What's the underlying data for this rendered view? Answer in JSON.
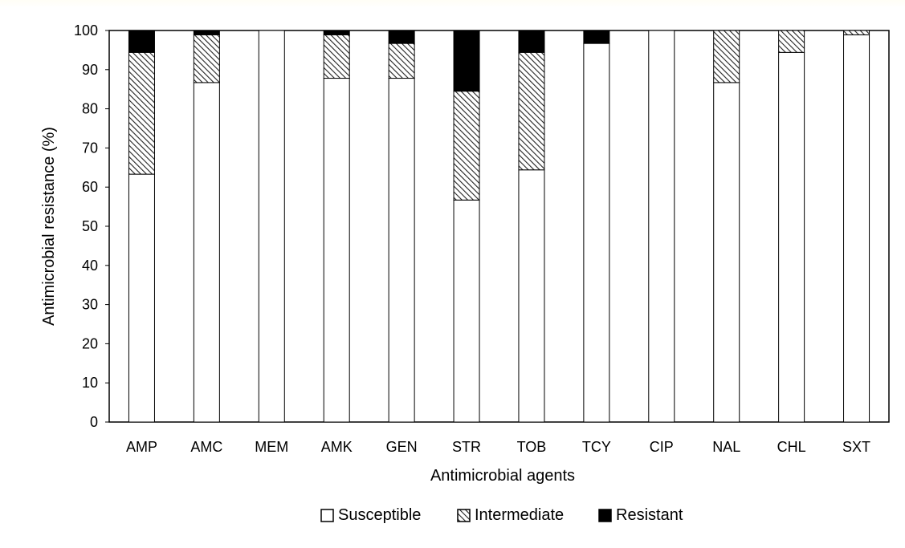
{
  "chart_data": {
    "type": "bar",
    "stacked": true,
    "title": "",
    "xlabel": "Antimicrobial agents",
    "ylabel": "Antimicrobial resistance (%)",
    "ylim": [
      0,
      100
    ],
    "yticks": [
      0,
      10,
      20,
      30,
      40,
      50,
      60,
      70,
      80,
      90,
      100
    ],
    "grid": false,
    "legend_position": "bottom",
    "categories": [
      "AMP",
      "AMC",
      "MEM",
      "AMK",
      "GEN",
      "STR",
      "TOB",
      "TCY",
      "CIP",
      "NAL",
      "CHL",
      "SXT"
    ],
    "series": [
      {
        "name": "Susceptible",
        "fill": "#ffffff",
        "pattern": "none",
        "values": [
          63.3,
          86.7,
          100,
          87.8,
          87.8,
          56.7,
          64.4,
          96.7,
          100,
          86.7,
          94.4,
          98.9
        ]
      },
      {
        "name": "Intermediate",
        "fill": "#ffffff",
        "pattern": "hatch",
        "values": [
          31.1,
          12.2,
          0,
          11.1,
          8.9,
          27.8,
          30.0,
          0,
          0,
          13.3,
          5.6,
          1.1
        ]
      },
      {
        "name": "Resistant",
        "fill": "#000000",
        "pattern": "none",
        "values": [
          5.6,
          1.1,
          0,
          1.1,
          3.3,
          15.5,
          5.6,
          3.3,
          0,
          0,
          0,
          0
        ]
      }
    ]
  }
}
